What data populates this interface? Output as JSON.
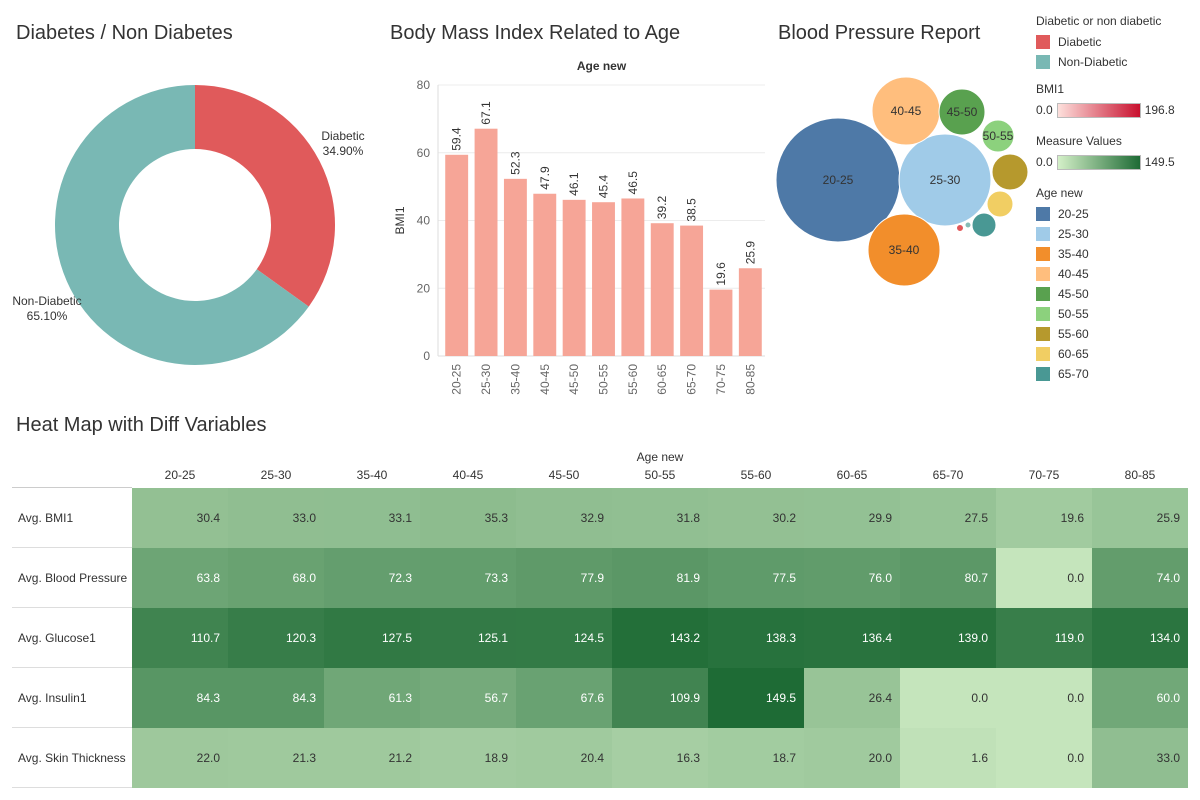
{
  "donut": {
    "title": "Diabetes / Non Diabetes",
    "chart_data": {
      "type": "pie",
      "slices": [
        {
          "name": "Diabetic",
          "label": "34.90%",
          "value": 34.9,
          "color": "#e05a5b"
        },
        {
          "name": "Non-Diabetic",
          "label": "65.10%",
          "value": 65.1,
          "color": "#79b8b4"
        }
      ]
    }
  },
  "bmi": {
    "title": "Body Mass Index Related to Age",
    "chart_data": {
      "type": "bar",
      "xlabel": "Age new",
      "ylabel": "BMI1",
      "ylim": [
        0,
        80
      ],
      "yticks": [
        "0",
        "20",
        "40",
        "60",
        "80"
      ],
      "categories": [
        "20-25",
        "25-30",
        "35-40",
        "40-45",
        "45-50",
        "50-55",
        "55-60",
        "60-65",
        "65-70",
        "70-75",
        "80-85"
      ],
      "values": [
        59.4,
        67.1,
        52.3,
        47.9,
        46.1,
        45.4,
        46.5,
        39.2,
        38.5,
        19.6,
        25.9
      ],
      "value_labels": [
        "59.4",
        "67.1",
        "52.3",
        "47.9",
        "46.1",
        "45.4",
        "46.5",
        "39.2",
        "38.5",
        "19.6",
        "25.9"
      ],
      "bar_color": "#f6a597"
    }
  },
  "bubbles": {
    "title": "Blood Pressure Report",
    "chart_data": {
      "type": "scatter",
      "nodes": [
        {
          "name": "20-25",
          "label": "20-25",
          "color": "#4e79a7"
        },
        {
          "name": "25-30",
          "label": "25-30",
          "color": "#a0cbe8"
        },
        {
          "name": "35-40",
          "label": "35-40",
          "color": "#f28e2b"
        },
        {
          "name": "40-45",
          "label": "40-45",
          "color": "#ffbe7d"
        },
        {
          "name": "45-50",
          "label": "45-50",
          "color": "#59a14f"
        },
        {
          "name": "50-55",
          "label": "50-55",
          "color": "#8cd17d"
        },
        {
          "name": "55-60",
          "label": "",
          "color": "#b6992d"
        },
        {
          "name": "60-65",
          "label": "",
          "color": "#f1ce63"
        },
        {
          "name": "65-70",
          "label": "",
          "color": "#499894"
        },
        {
          "name": "70-75",
          "label": "",
          "color": "#e15759"
        },
        {
          "name": "80-85",
          "label": "",
          "color": "#86bcb6"
        }
      ]
    }
  },
  "legend": {
    "group1": {
      "title": "Diabetic or non diabetic",
      "items": [
        {
          "label": "Diabetic",
          "color": "#e05a5b"
        },
        {
          "label": "Non-Diabetic",
          "color": "#79b8b4"
        }
      ]
    },
    "bmi_scale": {
      "title": "BMI1",
      "min": "0.0",
      "max": "196.8",
      "from": "#fde0dc",
      "to": "#c8102e"
    },
    "measure_scale": {
      "title": "Measure Values",
      "min": "0.0",
      "max": "149.5",
      "from": "#d4f0c8",
      "to": "#1e6b35"
    },
    "age": {
      "title": "Age new",
      "items": [
        {
          "label": "20-25",
          "color": "#4e79a7"
        },
        {
          "label": "25-30",
          "color": "#a0cbe8"
        },
        {
          "label": "35-40",
          "color": "#f28e2b"
        },
        {
          "label": "40-45",
          "color": "#ffbe7d"
        },
        {
          "label": "45-50",
          "color": "#59a14f"
        },
        {
          "label": "50-55",
          "color": "#8cd17d"
        },
        {
          "label": "55-60",
          "color": "#b6992d"
        },
        {
          "label": "60-65",
          "color": "#f1ce63"
        },
        {
          "label": "65-70",
          "color": "#499894"
        }
      ]
    }
  },
  "heatmap": {
    "title": "Heat Map with Diff Variables",
    "chart_data": {
      "type": "heatmap",
      "column_axis_title": "Age new",
      "columns": [
        "20-25",
        "25-30",
        "35-40",
        "40-45",
        "45-50",
        "50-55",
        "55-60",
        "60-65",
        "65-70",
        "70-75",
        "80-85"
      ],
      "rows": [
        {
          "name": "Avg. BMI1",
          "values": [
            30.4,
            33.0,
            33.1,
            35.3,
            32.9,
            31.8,
            30.2,
            29.9,
            27.5,
            19.6,
            25.9
          ],
          "labels": [
            "30.4",
            "33.0",
            "33.1",
            "35.3",
            "32.9",
            "31.8",
            "30.2",
            "29.9",
            "27.5",
            "19.6",
            "25.9"
          ]
        },
        {
          "name": "Avg. Blood Pressure",
          "values": [
            63.8,
            68.0,
            72.3,
            73.3,
            77.9,
            81.9,
            77.5,
            76.0,
            80.7,
            0.0,
            74.0
          ],
          "labels": [
            "63.8",
            "68.0",
            "72.3",
            "73.3",
            "77.9",
            "81.9",
            "77.5",
            "76.0",
            "80.7",
            "0.0",
            "74.0"
          ]
        },
        {
          "name": "Avg. Glucose1",
          "values": [
            110.7,
            120.3,
            127.5,
            125.1,
            124.5,
            143.2,
            138.3,
            136.4,
            139.0,
            119.0,
            134.0
          ],
          "labels": [
            "110.7",
            "120.3",
            "127.5",
            "125.1",
            "124.5",
            "143.2",
            "138.3",
            "136.4",
            "139.0",
            "119.0",
            "134.0"
          ]
        },
        {
          "name": "Avg. Insulin1",
          "values": [
            84.3,
            84.3,
            61.3,
            56.7,
            67.6,
            109.9,
            149.5,
            26.4,
            0.0,
            0.0,
            60.0
          ],
          "labels": [
            "84.3",
            "84.3",
            "61.3",
            "56.7",
            "67.6",
            "109.9",
            "149.5",
            "26.4",
            "0.0",
            "0.0",
            "60.0"
          ]
        },
        {
          "name": "Avg. Skin Thickness",
          "values": [
            22.0,
            21.3,
            21.2,
            18.9,
            20.4,
            16.3,
            18.7,
            20.0,
            1.6,
            0.0,
            33.0
          ],
          "labels": [
            "22.0",
            "21.3",
            "21.2",
            "18.9",
            "20.4",
            "16.3",
            "18.7",
            "20.0",
            "1.6",
            "0.0",
            "33.0"
          ]
        }
      ],
      "color_min": 0.0,
      "color_max": 149.5
    }
  }
}
